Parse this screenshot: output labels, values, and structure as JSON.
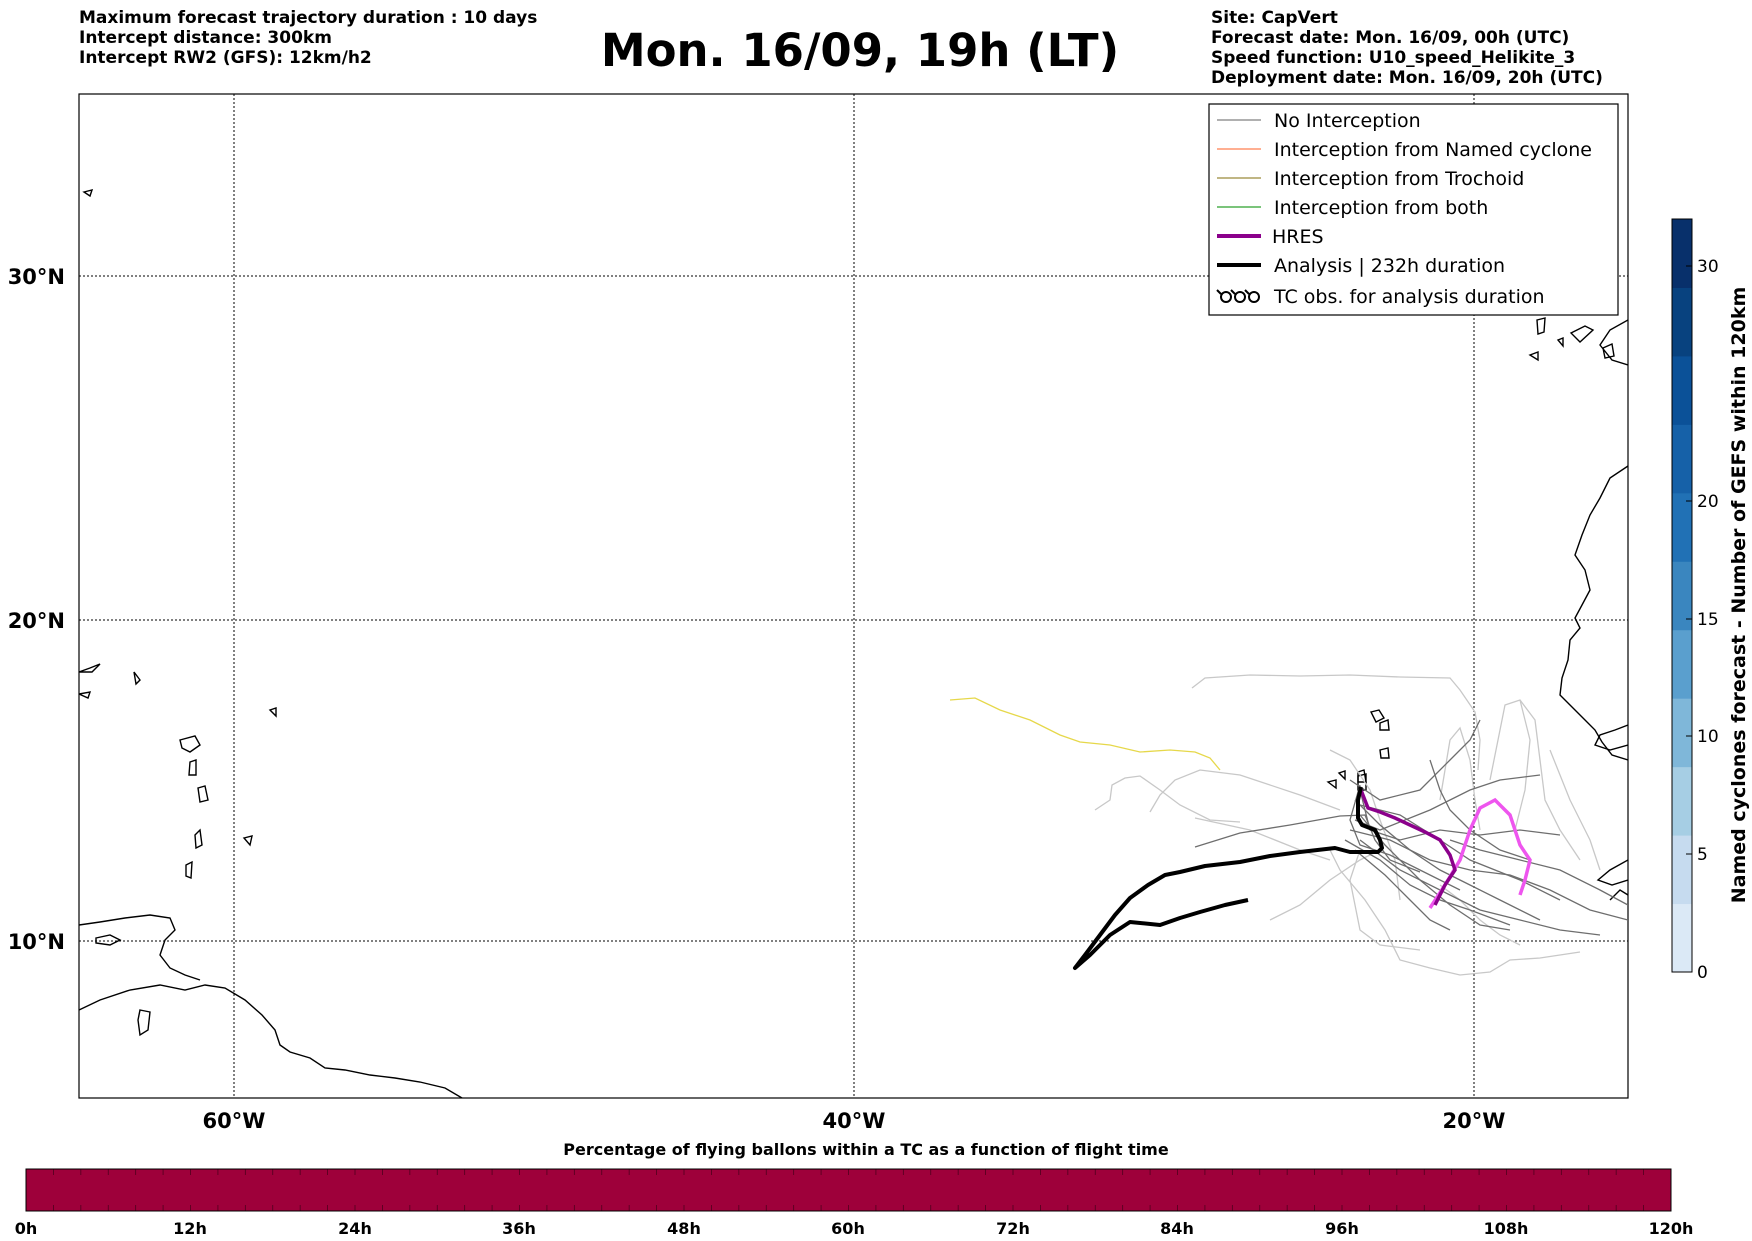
{
  "header_left": [
    "Maximum forecast trajectory duration : 10 days",
    "Intercept distance: 300km",
    "Intercept RW2 (GFS):  12km/h2"
  ],
  "title": "Mon. 16/09, 19h (LT)",
  "header_right": [
    "Site: CapVert",
    "Forecast date: Mon. 16/09, 00h (UTC)",
    "Speed function: U10_speed_Helikite_3",
    "Deployment date: Mon. 16/09, 20h (UTC)"
  ],
  "map": {
    "lat_labels": [
      "30°N",
      "20°N",
      "10°N"
    ],
    "lon_labels": [
      "60°W",
      "40°W",
      "20°W"
    ],
    "grid": true
  },
  "legend": {
    "placement": "top-right",
    "items": [
      {
        "label": "No Interception",
        "color": "#808080",
        "style": "thin-line"
      },
      {
        "label": "Interception from Named cyclone",
        "color": "#ff7f50",
        "style": "thin-line"
      },
      {
        "label": "Interception from Trochoid",
        "color": "#9b8a3a",
        "style": "thin-line"
      },
      {
        "label": "Interception from both",
        "color": "#2ca02c",
        "style": "thin-line"
      },
      {
        "label": "HRES",
        "color": "#8b008b",
        "style": "thick-line"
      },
      {
        "label": "Analysis | 232h duration",
        "color": "#000000",
        "style": "thick-line"
      },
      {
        "label": "TC obs. for analysis duration",
        "color": "#000000",
        "style": "tc-symbol"
      }
    ]
  },
  "colorbar_right": {
    "label": "Named cyclones forecast - Number of GEFS within 120km",
    "ticks": [
      "0",
      "5",
      "10",
      "15",
      "20",
      "30"
    ],
    "range": [
      0,
      32
    ],
    "colors": [
      "#dbe9f6",
      "#c6dbef",
      "#a6cee4",
      "#7fb7d9",
      "#5a9fce",
      "#3a86bf",
      "#2171b5",
      "#1661a8",
      "#0b5198",
      "#08427f",
      "#08306b"
    ]
  },
  "colorbar_bottom": {
    "title": "Percentage of flying ballons within a TC as a function of flight time",
    "ticks": [
      "0h",
      "12h",
      "24h",
      "36h",
      "48h",
      "60h",
      "72h",
      "84h",
      "96h",
      "108h",
      "120h"
    ],
    "fill_color": "#9e003a"
  },
  "colors": {
    "yellow_track": "#e6d84a",
    "magenta_track": "#ee55ee",
    "hres_track": "#8b008b",
    "analysis_track": "#000000"
  }
}
